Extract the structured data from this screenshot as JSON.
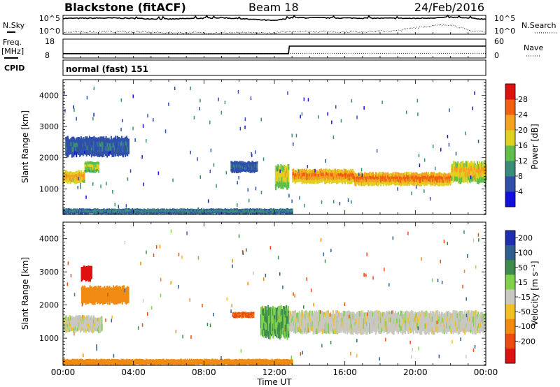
{
  "header": {
    "station": "Blackstone (fitACF)",
    "beam": "Beam 18",
    "date": "24/Feb/2016"
  },
  "summary": {
    "nsky_label": "N.Sky",
    "nsearch_label": "N.Search",
    "freq_label_1": "Freq.",
    "freq_label_2": "[MHz]",
    "nave_label": "Nave",
    "cpid_label": "CPID",
    "cpid_value": "normal (fast) 151",
    "noise_ticks": [
      "10^5",
      "10^0"
    ],
    "freq_ticks": [
      "18",
      "8"
    ],
    "nave_ticks": [
      "60",
      "0"
    ]
  },
  "axes": {
    "xlabel": "Time UT",
    "ylabel": "Slant Range [km]",
    "xticks": [
      "00:00",
      "04:00",
      "08:00",
      "12:00",
      "16:00",
      "20:00",
      "00:00"
    ],
    "yticks": [
      "1000",
      "2000",
      "3000",
      "4000"
    ]
  },
  "colorbars": {
    "power": {
      "label": "Power [dB]",
      "ticks": [
        "4",
        "8",
        "12",
        "16",
        "20",
        "24",
        "28"
      ],
      "colors": [
        "#1010e0",
        "#2f4faa",
        "#3a8c7a",
        "#5fbf4a",
        "#e0d020",
        "#f4a020",
        "#f06010",
        "#e01010"
      ]
    },
    "velocity": {
      "label": "Velocity [m s⁻¹]",
      "ticks": [
        "200",
        "100",
        "50",
        "15",
        "-15",
        "-50",
        "-100",
        "-200"
      ],
      "colors": [
        "#1f2fb0",
        "#2f5f8f",
        "#3c8c4c",
        "#7fd14c",
        "#c8c8c0",
        "#f0c020",
        "#f08a10",
        "#ee4a10",
        "#e01010"
      ]
    }
  },
  "chart_data": [
    {
      "type": "line",
      "title": "",
      "xlabel": "",
      "ylabel": "N.Sky",
      "x_range_hours": [
        0,
        24
      ],
      "series": [
        {
          "name": "N.Sky",
          "x": [
            0,
            3,
            6,
            9,
            12,
            13,
            16,
            20,
            22,
            24
          ],
          "values": [
            4.2,
            4.3,
            4.0,
            4.4,
            3.6,
            4.4,
            4.3,
            4.2,
            4.5,
            4.0
          ]
        },
        {
          "name": "N.Search",
          "x": [
            0,
            3,
            6,
            9,
            12,
            13,
            16,
            19,
            20,
            22,
            23,
            24
          ],
          "values": [
            0.5,
            0.7,
            0.4,
            0.4,
            0.3,
            0.8,
            0.6,
            0.9,
            1.8,
            2.6,
            1.0,
            0.6
          ]
        }
      ]
    },
    {
      "type": "line",
      "title": "",
      "xlabel": "",
      "ylabel": "Freq. [MHz]",
      "x_range_hours": [
        0,
        24
      ],
      "series": [
        {
          "name": "Freq.",
          "x": [
            0,
            12.8,
            12.85,
            24
          ],
          "values": [
            10.5,
            10.5,
            14.8,
            14.8
          ]
        },
        {
          "name": "Nave",
          "x": [
            0,
            12.8,
            12.85,
            24
          ],
          "values": [
            16,
            16,
            16,
            16
          ]
        }
      ]
    },
    {
      "type": "heatmap",
      "title": "",
      "xlabel": "",
      "ylabel": "Slant Range [km]",
      "x_range_hours": [
        0,
        24
      ],
      "ylim": [
        180,
        4500
      ],
      "colorbar": "Power [dB]",
      "bands": [
        {
          "t0": 0,
          "t1": 1.2,
          "r0": 1150,
          "r1": 1600,
          "power": 24
        },
        {
          "t0": 1.2,
          "t1": 2.0,
          "r0": 1500,
          "r1": 1900,
          "power": 18
        },
        {
          "t0": 0.1,
          "t1": 3.7,
          "r0": 2000,
          "r1": 2700,
          "power": 8
        },
        {
          "t0": 9.5,
          "t1": 11.0,
          "r0": 1500,
          "r1": 1900,
          "power": 8
        },
        {
          "t0": 12.0,
          "t1": 12.8,
          "r0": 950,
          "r1": 1800,
          "power": 20
        },
        {
          "t0": 13.0,
          "t1": 16.5,
          "r0": 1150,
          "r1": 1650,
          "power": 26
        },
        {
          "t0": 16.5,
          "t1": 22.0,
          "r0": 1080,
          "r1": 1550,
          "power": 27
        },
        {
          "t0": 22.0,
          "t1": 24.0,
          "r0": 1150,
          "r1": 1900,
          "power": 22
        },
        {
          "t0": 0,
          "t1": 13.0,
          "r0": 180,
          "r1": 380,
          "power": 10
        }
      ]
    },
    {
      "type": "heatmap",
      "title": "",
      "xlabel": "Time UT",
      "ylabel": "Slant Range [km]",
      "x_range_hours": [
        0,
        24
      ],
      "ylim": [
        180,
        4500
      ],
      "colorbar": "Velocity [m s⁻¹]",
      "bands": [
        {
          "t0": 0,
          "t1": 2.2,
          "r0": 1150,
          "r1": 1700,
          "velocity": 0
        },
        {
          "t0": 1.0,
          "t1": 3.7,
          "r0": 2000,
          "r1": 2600,
          "velocity": -40
        },
        {
          "t0": 1.0,
          "t1": 1.6,
          "r0": 2700,
          "r1": 3200,
          "velocity": -200
        },
        {
          "t0": 9.6,
          "t1": 10.8,
          "r0": 1600,
          "r1": 1800,
          "velocity": -80
        },
        {
          "t0": 11.2,
          "t1": 12.8,
          "r0": 950,
          "r1": 2000,
          "velocity": 30
        },
        {
          "t0": 12.8,
          "t1": 24.0,
          "r0": 1100,
          "r1": 1850,
          "velocity": 0
        },
        {
          "t0": 0,
          "t1": 13.0,
          "r0": 180,
          "r1": 380,
          "velocity": -40
        }
      ]
    }
  ]
}
